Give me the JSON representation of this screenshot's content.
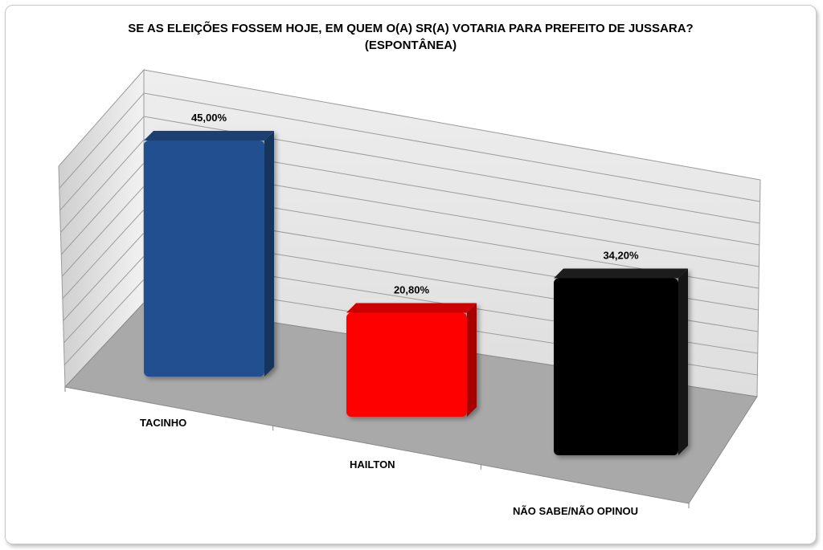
{
  "chart_data": {
    "type": "bar",
    "title": "SE AS ELEIÇÕES FOSSEM HOJE, EM QUEM O(A) SR(A) VOTARIA PARA PREFEITO DE JUSSARA?",
    "subtitle": "(ESPONTÂNEA)",
    "categories": [
      "TACINHO",
      "HAILTON",
      "NÃO SABE/NÃO OPINOU"
    ],
    "values": [
      45.0,
      20.8,
      34.2
    ],
    "data_labels": [
      "45,00%",
      "20,80%",
      "34,20%"
    ],
    "bar_colors": [
      "#23508f",
      "#ff0000",
      "#000000"
    ],
    "ylim": [
      0,
      50
    ],
    "grid": true,
    "legend": "none",
    "style": "3d-box"
  }
}
